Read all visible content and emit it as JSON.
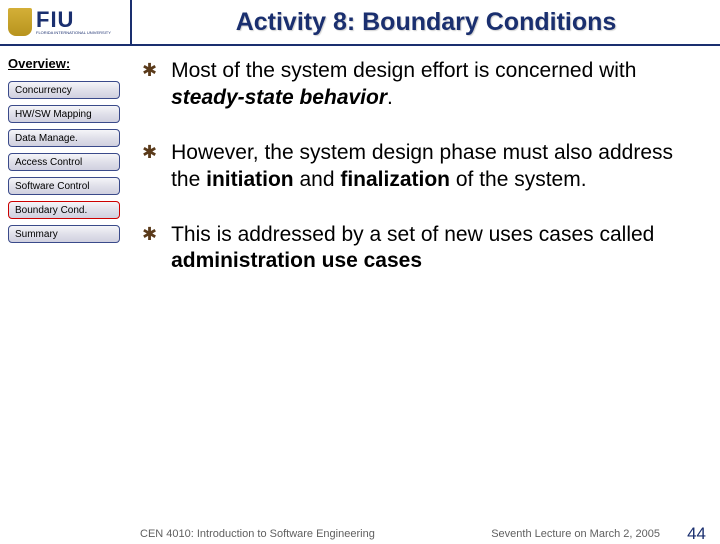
{
  "header": {
    "logo_main": "FIU",
    "logo_sub": "FLORIDA INTERNATIONAL UNIVERSITY",
    "title": "Activity 8: Boundary Conditions"
  },
  "sidebar": {
    "heading": "Overview:",
    "items": [
      {
        "label": "Concurrency",
        "active": false
      },
      {
        "label": "HW/SW Mapping",
        "active": false
      },
      {
        "label": "Data Manage.",
        "active": false
      },
      {
        "label": "Access Control",
        "active": false
      },
      {
        "label": "Software Control",
        "active": false
      },
      {
        "label": "Boundary Cond.",
        "active": true
      },
      {
        "label": "Summary",
        "active": false
      }
    ]
  },
  "content": {
    "bullets": [
      {
        "html": "Most of the system design effort is concerned with <i>steady-state behavior</i>."
      },
      {
        "html": "However, the system design phase must also address the <b>initiation</b> and <b>finalization</b> of the system."
      },
      {
        "html": "This is addressed by a set of new uses cases called <b>administration use cases</b>"
      }
    ],
    "bullet_glyph": "✱"
  },
  "footer": {
    "left": "CEN 4010: Introduction to Software Engineering",
    "right": "Seventh Lecture on March 2, 2005",
    "page": "44"
  },
  "colors": {
    "brand": "#1a2f6f",
    "active_border": "#cc0000",
    "bullet": "#5a3a1a",
    "footer_text": "#606060"
  }
}
